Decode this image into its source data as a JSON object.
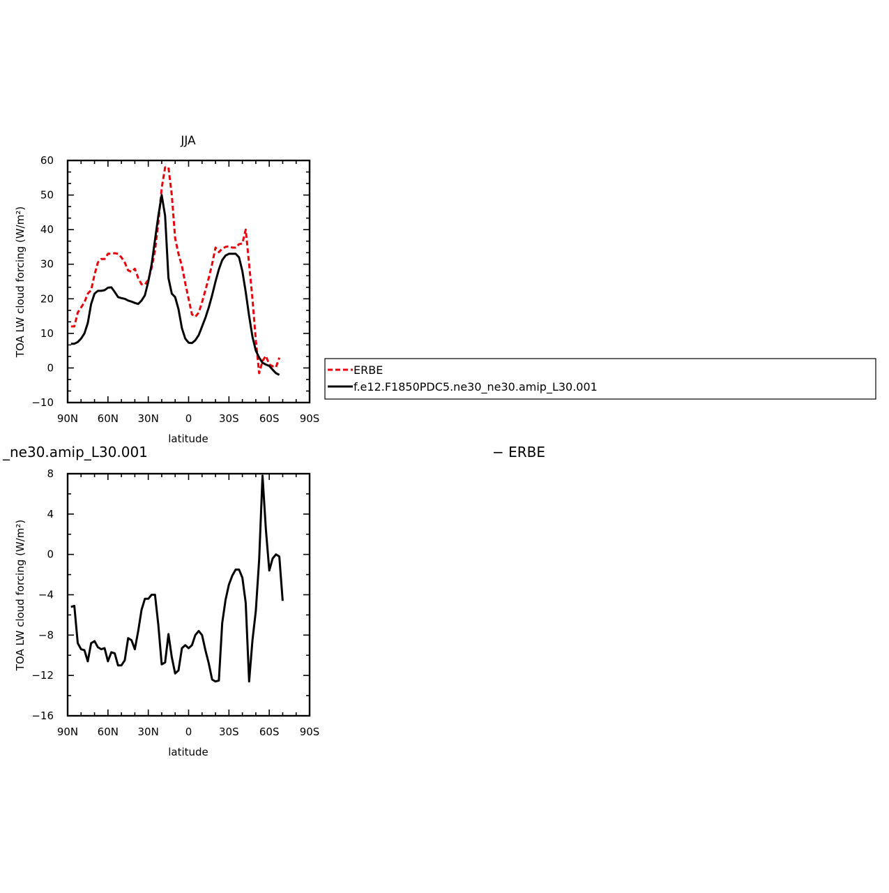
{
  "chart_data": [
    {
      "type": "line",
      "title": "JJA",
      "xlabel": "latitude",
      "ylabel": "TOA LW cloud forcing (W/m²)",
      "xlim": [
        -90,
        90
      ],
      "ylim": [
        -10,
        60
      ],
      "x_ticks": [
        {
          "value": -90,
          "label": "90N"
        },
        {
          "value": -60,
          "label": "60N"
        },
        {
          "value": -30,
          "label": "30N"
        },
        {
          "value": 0,
          "label": "0"
        },
        {
          "value": 30,
          "label": "30S"
        },
        {
          "value": 60,
          "label": "60S"
        },
        {
          "value": 90,
          "label": "90S"
        }
      ],
      "y_ticks": [
        {
          "value": -10,
          "label": "−10"
        },
        {
          "value": 0,
          "label": "0"
        },
        {
          "value": 10,
          "label": "10"
        },
        {
          "value": 20,
          "label": "20"
        },
        {
          "value": 30,
          "label": "30"
        },
        {
          "value": 40,
          "label": "40"
        },
        {
          "value": 50,
          "label": "50"
        },
        {
          "value": 60,
          "label": "60"
        }
      ],
      "legend": {
        "placement": "right"
      },
      "series": [
        {
          "name": "ERBE",
          "color": "#e8000b",
          "dash": "dashed",
          "points": [
            [
              -87.5,
              12
            ],
            [
              -85,
              12
            ],
            [
              -82.5,
              16
            ],
            [
              -80,
              17.5
            ],
            [
              -77.5,
              19
            ],
            [
              -75,
              21.5
            ],
            [
              -72.5,
              22.5
            ],
            [
              -70,
              27
            ],
            [
              -67.5,
              30.5
            ],
            [
              -65,
              31.5
            ],
            [
              -62.5,
              31.5
            ],
            [
              -60,
              33
            ],
            [
              -57.5,
              33
            ],
            [
              -55,
              33.2
            ],
            [
              -52.5,
              33
            ],
            [
              -50,
              32
            ],
            [
              -47.5,
              30.5
            ],
            [
              -45,
              28.2
            ],
            [
              -42.5,
              27.8
            ],
            [
              -40,
              28.7
            ],
            [
              -37.5,
              26
            ],
            [
              -35,
              24.2
            ],
            [
              -32.5,
              24.1
            ],
            [
              -30,
              25.5
            ],
            [
              -27.5,
              29
            ],
            [
              -25,
              34
            ],
            [
              -22.5,
              42
            ],
            [
              -20,
              52
            ],
            [
              -17.5,
              58
            ],
            [
              -15,
              58
            ],
            [
              -12.5,
              50
            ],
            [
              -10,
              37.5
            ],
            [
              -7.5,
              33
            ],
            [
              -5,
              29.5
            ],
            [
              -2.5,
              24.5
            ],
            [
              0,
              20
            ],
            [
              2.5,
              15.5
            ],
            [
              5,
              14.8
            ],
            [
              7.5,
              16
            ],
            [
              10,
              19
            ],
            [
              12.5,
              22.5
            ],
            [
              15,
              26
            ],
            [
              17.5,
              30
            ],
            [
              20,
              34.8
            ],
            [
              22.5,
              33.5
            ],
            [
              25,
              34.5
            ],
            [
              27.5,
              35
            ],
            [
              30,
              35.2
            ],
            [
              32.5,
              34.8
            ],
            [
              35,
              34.8
            ],
            [
              37.5,
              35.8
            ],
            [
              40,
              36
            ],
            [
              42.5,
              40
            ],
            [
              45,
              30
            ],
            [
              47.5,
              20
            ],
            [
              50,
              8
            ],
            [
              52.5,
              -1.5
            ],
            [
              55,
              2
            ],
            [
              57.5,
              3.5
            ],
            [
              60,
              1
            ],
            [
              62.5,
              0.5
            ],
            [
              65,
              0.2
            ],
            [
              67.5,
              3
            ]
          ]
        },
        {
          "name": "f.e12.F1850PDC5.ne30_ne30.amip_L30.001",
          "color": "#000000",
          "dash": "solid",
          "points": [
            [
              -87.5,
              7
            ],
            [
              -85,
              7
            ],
            [
              -82.5,
              7.5
            ],
            [
              -80,
              8.5
            ],
            [
              -77.5,
              10
            ],
            [
              -75,
              13
            ],
            [
              -72.5,
              18.5
            ],
            [
              -70,
              21.5
            ],
            [
              -67.5,
              22.3
            ],
            [
              -65,
              22.3
            ],
            [
              -62.5,
              22.5
            ],
            [
              -60,
              23.2
            ],
            [
              -57.5,
              23.3
            ],
            [
              -55,
              22
            ],
            [
              -52.5,
              20.5
            ],
            [
              -50,
              20.2
            ],
            [
              -47.5,
              20
            ],
            [
              -45,
              19.5
            ],
            [
              -42.5,
              19.2
            ],
            [
              -40,
              18.8
            ],
            [
              -37.5,
              18.5
            ],
            [
              -35,
              19.5
            ],
            [
              -32.5,
              21
            ],
            [
              -30,
              25
            ],
            [
              -27.5,
              30
            ],
            [
              -25,
              37
            ],
            [
              -22.5,
              44
            ],
            [
              -20,
              50
            ],
            [
              -17.5,
              44
            ],
            [
              -15,
              26
            ],
            [
              -12.5,
              21.5
            ],
            [
              -10,
              20.5
            ],
            [
              -7.5,
              17
            ],
            [
              -5,
              11.5
            ],
            [
              -2.5,
              8.5
            ],
            [
              0,
              7.3
            ],
            [
              2.5,
              7.2
            ],
            [
              5,
              8
            ],
            [
              7.5,
              9.5
            ],
            [
              10,
              12
            ],
            [
              12.5,
              14.5
            ],
            [
              15,
              17.5
            ],
            [
              17.5,
              21
            ],
            [
              20,
              25
            ],
            [
              22.5,
              28.5
            ],
            [
              25,
              31.2
            ],
            [
              27.5,
              32.5
            ],
            [
              30,
              33
            ],
            [
              32.5,
              33
            ],
            [
              35,
              33
            ],
            [
              37.5,
              32
            ],
            [
              40,
              28
            ],
            [
              42.5,
              22
            ],
            [
              45,
              15
            ],
            [
              47.5,
              9
            ],
            [
              50,
              5
            ],
            [
              52.5,
              3
            ],
            [
              55,
              1.5
            ],
            [
              57.5,
              1
            ],
            [
              60,
              0.6
            ],
            [
              62.5,
              -0.5
            ],
            [
              65,
              -1.5
            ],
            [
              67.5,
              -2
            ]
          ]
        }
      ]
    },
    {
      "type": "line",
      "title": "_ne30.amip_L30.001",
      "title_right": "− ERBE",
      "xlabel": "latitude",
      "ylabel": "TOA LW cloud forcing (W/m²)",
      "xlim": [
        -90,
        90
      ],
      "ylim": [
        -16,
        8
      ],
      "x_ticks": [
        {
          "value": -90,
          "label": "90N"
        },
        {
          "value": -60,
          "label": "60N"
        },
        {
          "value": -30,
          "label": "30N"
        },
        {
          "value": 0,
          "label": "0"
        },
        {
          "value": 30,
          "label": "30S"
        },
        {
          "value": 60,
          "label": "60S"
        },
        {
          "value": 90,
          "label": "90S"
        }
      ],
      "y_ticks": [
        {
          "value": -16,
          "label": "−16"
        },
        {
          "value": -12,
          "label": "−12"
        },
        {
          "value": -8,
          "label": "−8"
        },
        {
          "value": -4,
          "label": "−4"
        },
        {
          "value": 0,
          "label": "0"
        },
        {
          "value": 4,
          "label": "4"
        },
        {
          "value": 8,
          "label": "8"
        }
      ],
      "series": [
        {
          "color": "#000000",
          "dash": "solid",
          "points": [
            [
              -87.5,
              -5.2
            ],
            [
              -85,
              -5.1
            ],
            [
              -82.5,
              -8.8
            ],
            [
              -80,
              -9.4
            ],
            [
              -77.5,
              -9.5
            ],
            [
              -75,
              -10.6
            ],
            [
              -72.5,
              -8.8
            ],
            [
              -70,
              -8.6
            ],
            [
              -67.5,
              -9.2
            ],
            [
              -65,
              -9.4
            ],
            [
              -62.5,
              -9.3
            ],
            [
              -60,
              -10.6
            ],
            [
              -57.5,
              -9.7
            ],
            [
              -55,
              -9.8
            ],
            [
              -52.5,
              -11
            ],
            [
              -50,
              -11
            ],
            [
              -47.5,
              -10.5
            ],
            [
              -45,
              -8.3
            ],
            [
              -42.5,
              -8.5
            ],
            [
              -40,
              -9.4
            ],
            [
              -37.5,
              -7.6
            ],
            [
              -35,
              -5.5
            ],
            [
              -32.5,
              -4.4
            ],
            [
              -30,
              -4.4
            ],
            [
              -27.5,
              -4
            ],
            [
              -25,
              -4
            ],
            [
              -22.5,
              -7
            ],
            [
              -20,
              -10.9
            ],
            [
              -17.5,
              -10.7
            ],
            [
              -15,
              -7.9
            ],
            [
              -12.5,
              -10.2
            ],
            [
              -10,
              -11.8
            ],
            [
              -7.5,
              -11.5
            ],
            [
              -5,
              -9.3
            ],
            [
              -2.5,
              -9
            ],
            [
              0,
              -9.3
            ],
            [
              2.5,
              -9
            ],
            [
              5,
              -8
            ],
            [
              7.5,
              -7.6
            ],
            [
              10,
              -8
            ],
            [
              12.5,
              -9.5
            ],
            [
              15,
              -10.8
            ],
            [
              17.5,
              -12.4
            ],
            [
              20,
              -12.6
            ],
            [
              22.5,
              -12.5
            ],
            [
              25,
              -6.8
            ],
            [
              27.5,
              -4.5
            ],
            [
              30,
              -3
            ],
            [
              32.5,
              -2.1
            ],
            [
              35,
              -1.5
            ],
            [
              37.5,
              -1.5
            ],
            [
              40,
              -2.3
            ],
            [
              42.5,
              -4.8
            ],
            [
              45,
              -12.6
            ],
            [
              47.5,
              -8.5
            ],
            [
              50,
              -5.6
            ],
            [
              52.5,
              -0.5
            ],
            [
              55,
              7.8
            ],
            [
              57.5,
              2.5
            ],
            [
              60,
              -1.6
            ],
            [
              62.5,
              -0.4
            ],
            [
              65,
              0
            ],
            [
              67.5,
              -0.2
            ],
            [
              70,
              -4.6
            ]
          ]
        }
      ]
    }
  ]
}
